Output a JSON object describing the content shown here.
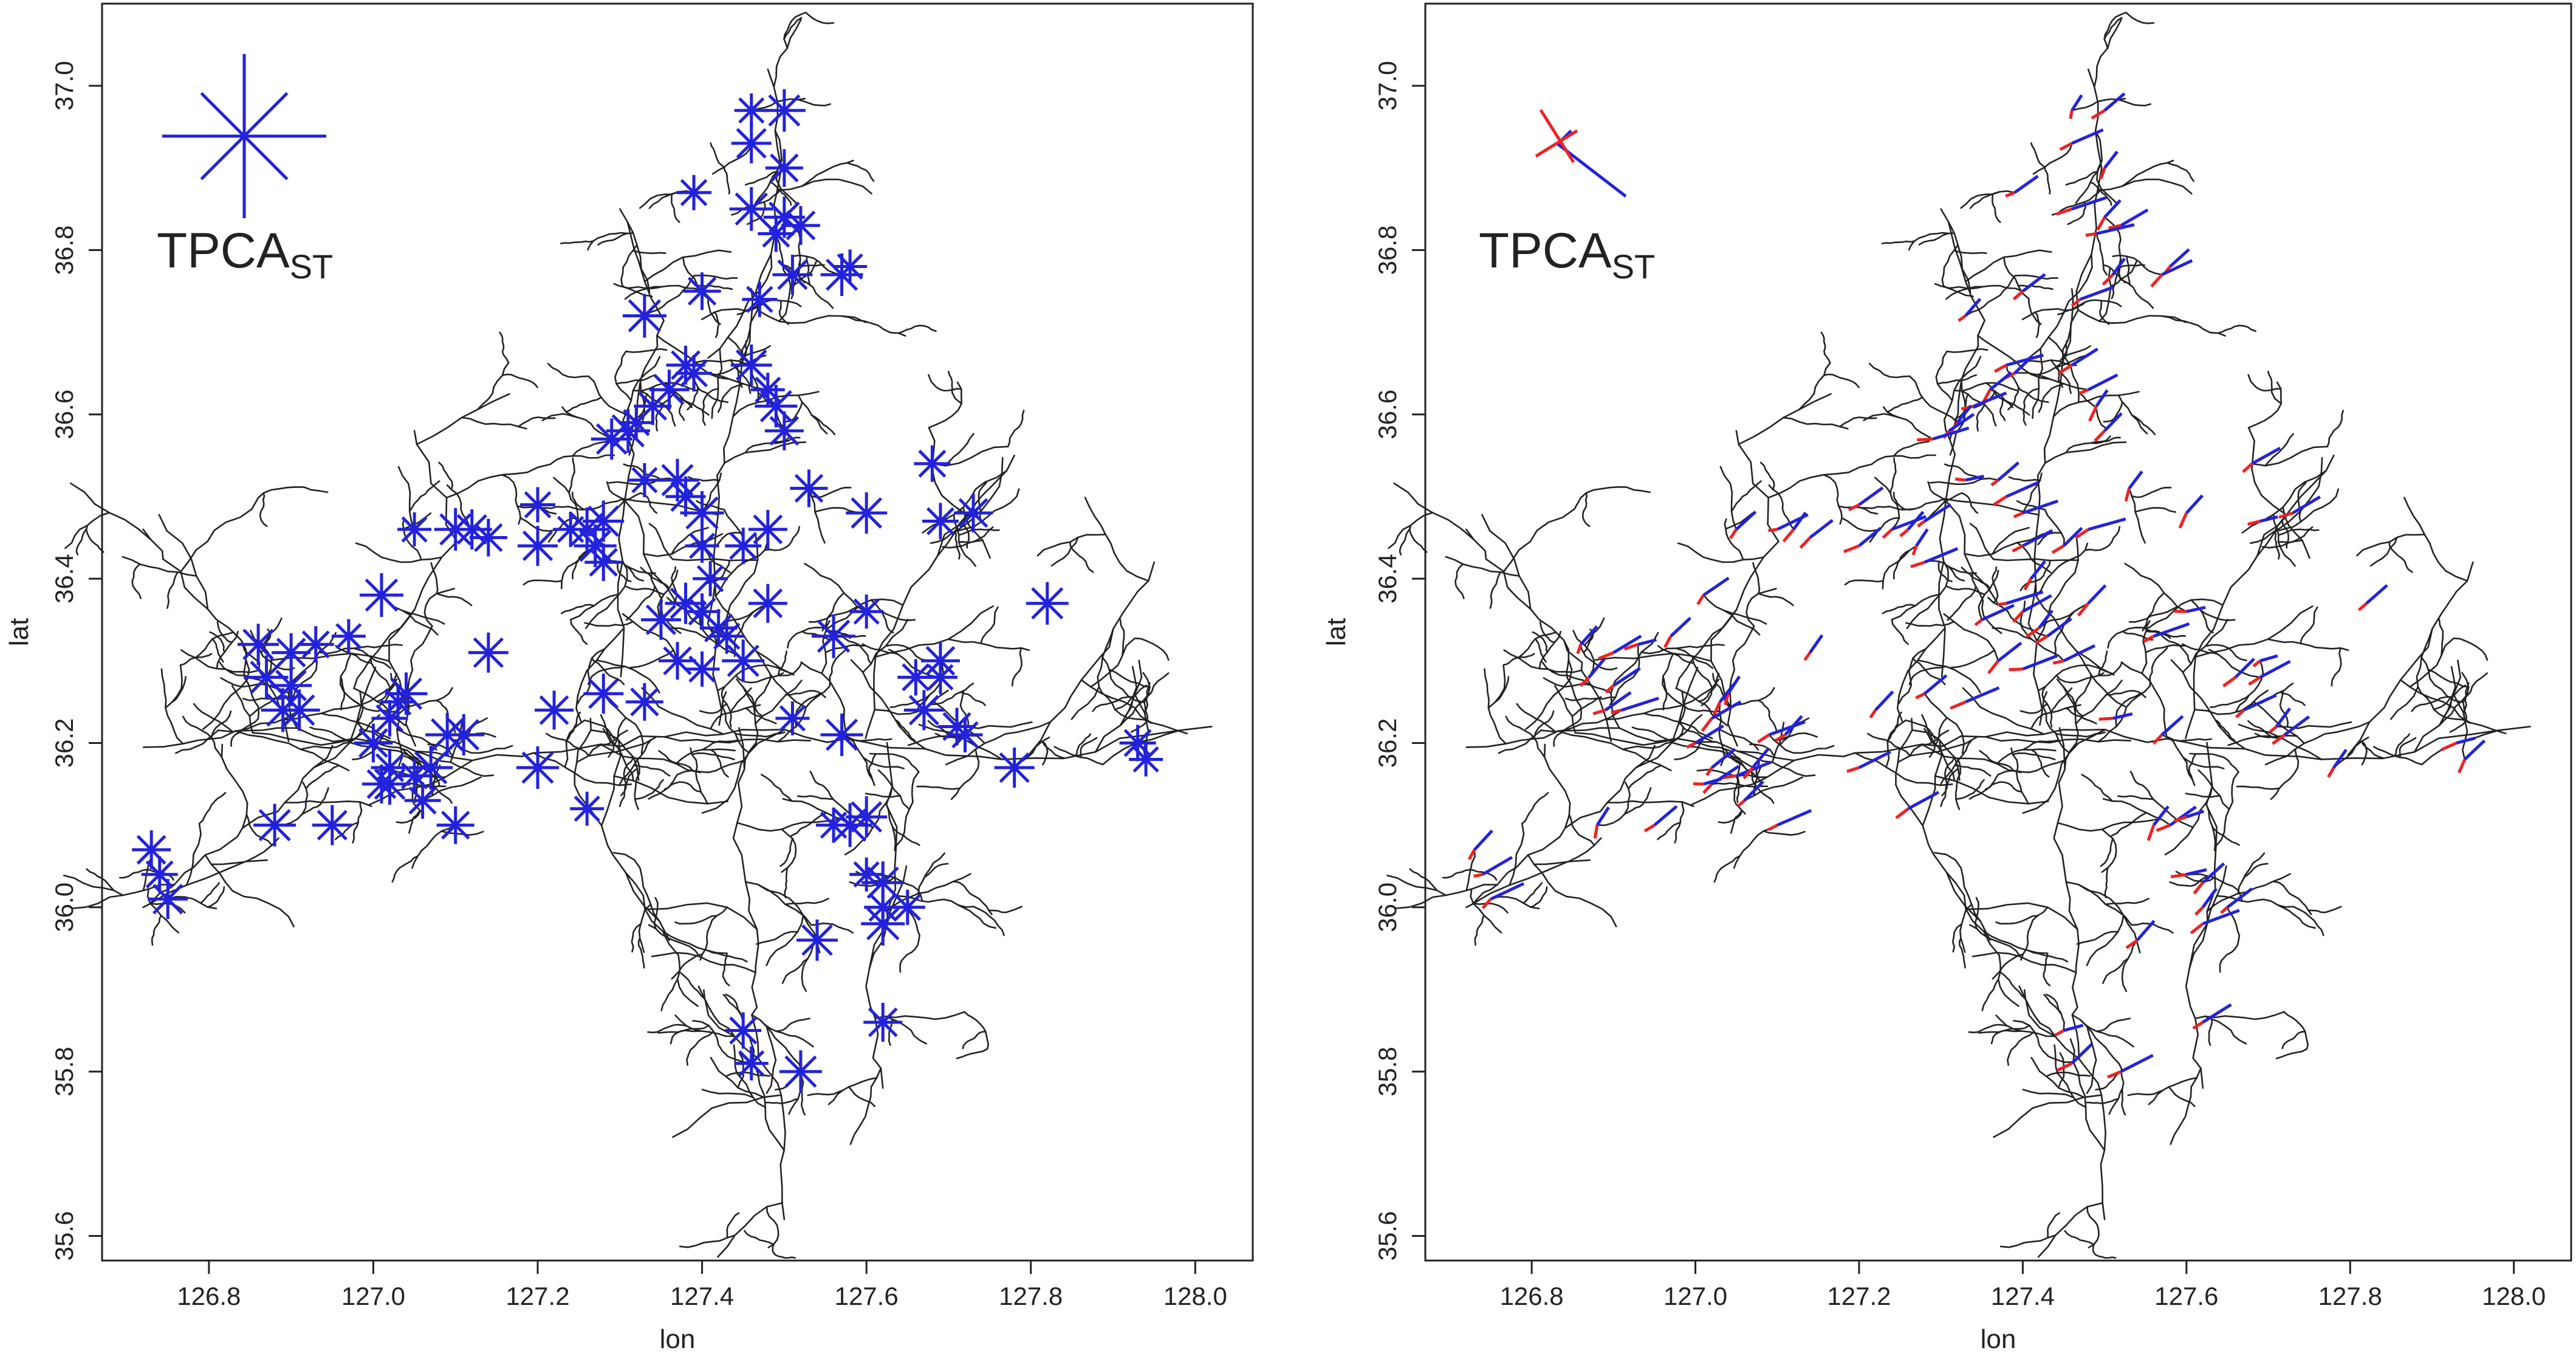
{
  "chart_data": [
    {
      "type": "scatter",
      "panel": "left",
      "xlabel": "lon",
      "ylabel": "lat",
      "xlim": [
        126.67,
        128.07
      ],
      "ylim": [
        35.57,
        37.1
      ],
      "xticks": [
        "126.8",
        "127.0",
        "127.2",
        "127.4",
        "127.6",
        "127.8",
        "128.0"
      ],
      "yticks": [
        "35.6",
        "35.8",
        "36.0",
        "36.2",
        "36.4",
        "36.6",
        "36.8",
        "37.0"
      ],
      "legend": {
        "label": "TPCA",
        "subscript": "ST",
        "placement": "top-left",
        "glyph": "star"
      },
      "colors": {
        "glyph": "#2222dd",
        "river": "#222222"
      },
      "sites": [
        [
          127.46,
          36.97
        ],
        [
          127.5,
          36.97
        ],
        [
          127.46,
          36.93
        ],
        [
          127.5,
          36.9
        ],
        [
          127.39,
          36.87
        ],
        [
          127.46,
          36.85
        ],
        [
          127.5,
          36.84
        ],
        [
          127.52,
          36.83
        ],
        [
          127.49,
          36.82
        ],
        [
          127.58,
          36.78
        ],
        [
          127.57,
          36.77
        ],
        [
          127.51,
          36.77
        ],
        [
          127.4,
          36.75
        ],
        [
          127.47,
          36.74
        ],
        [
          127.33,
          36.72
        ],
        [
          127.46,
          36.66
        ],
        [
          127.38,
          36.66
        ],
        [
          127.39,
          36.65
        ],
        [
          127.48,
          36.63
        ],
        [
          127.49,
          36.61
        ],
        [
          127.36,
          36.63
        ],
        [
          127.34,
          36.61
        ],
        [
          127.32,
          36.59
        ],
        [
          127.31,
          36.58
        ],
        [
          127.29,
          36.57
        ],
        [
          127.5,
          36.58
        ],
        [
          127.68,
          36.54
        ],
        [
          127.33,
          36.52
        ],
        [
          127.37,
          36.52
        ],
        [
          127.38,
          36.5
        ],
        [
          127.53,
          36.51
        ],
        [
          127.2,
          36.49
        ],
        [
          127.4,
          36.48
        ],
        [
          127.6,
          36.48
        ],
        [
          127.73,
          36.48
        ],
        [
          127.69,
          36.47
        ],
        [
          127.05,
          36.46
        ],
        [
          127.1,
          36.46
        ],
        [
          127.12,
          36.46
        ],
        [
          127.14,
          36.45
        ],
        [
          127.24,
          36.46
        ],
        [
          127.26,
          36.46
        ],
        [
          127.28,
          36.47
        ],
        [
          127.48,
          36.46
        ],
        [
          127.45,
          36.44
        ],
        [
          127.4,
          36.44
        ],
        [
          127.27,
          36.44
        ],
        [
          127.2,
          36.44
        ],
        [
          127.28,
          36.42
        ],
        [
          127.41,
          36.4
        ],
        [
          127.01,
          36.38
        ],
        [
          127.38,
          36.37
        ],
        [
          127.48,
          36.37
        ],
        [
          127.4,
          36.36
        ],
        [
          127.6,
          36.36
        ],
        [
          127.82,
          36.37
        ],
        [
          127.35,
          36.35
        ],
        [
          127.42,
          36.34
        ],
        [
          127.43,
          36.33
        ],
        [
          127.56,
          36.33
        ],
        [
          126.86,
          36.32
        ],
        [
          126.9,
          36.31
        ],
        [
          126.93,
          36.32
        ],
        [
          126.97,
          36.33
        ],
        [
          127.45,
          36.3
        ],
        [
          127.14,
          36.31
        ],
        [
          127.37,
          36.3
        ],
        [
          127.4,
          36.29
        ],
        [
          126.87,
          36.28
        ],
        [
          126.9,
          36.27
        ],
        [
          127.69,
          36.3
        ],
        [
          127.66,
          36.28
        ],
        [
          127.69,
          36.28
        ],
        [
          127.04,
          36.26
        ],
        [
          127.28,
          36.26
        ],
        [
          127.33,
          36.25
        ],
        [
          127.03,
          36.25
        ],
        [
          126.89,
          36.24
        ],
        [
          126.91,
          36.24
        ],
        [
          127.22,
          36.24
        ],
        [
          127.02,
          36.23
        ],
        [
          127.51,
          36.23
        ],
        [
          127.57,
          36.21
        ],
        [
          127.67,
          36.24
        ],
        [
          127.71,
          36.22
        ],
        [
          127.72,
          36.21
        ],
        [
          127.09,
          36.21
        ],
        [
          127.11,
          36.21
        ],
        [
          127.0,
          36.2
        ],
        [
          127.93,
          36.2
        ],
        [
          127.94,
          36.18
        ],
        [
          127.2,
          36.17
        ],
        [
          127.78,
          36.17
        ],
        [
          127.02,
          36.17
        ],
        [
          127.05,
          36.16
        ],
        [
          127.07,
          36.17
        ],
        [
          127.02,
          36.15
        ],
        [
          127.01,
          36.15
        ],
        [
          127.06,
          36.13
        ],
        [
          127.26,
          36.12
        ],
        [
          126.88,
          36.1
        ],
        [
          126.95,
          36.1
        ],
        [
          127.1,
          36.1
        ],
        [
          127.56,
          36.1
        ],
        [
          127.58,
          36.1
        ],
        [
          127.6,
          36.11
        ],
        [
          126.73,
          36.07
        ],
        [
          126.74,
          36.04
        ],
        [
          127.6,
          36.04
        ],
        [
          127.62,
          36.03
        ],
        [
          126.75,
          36.01
        ],
        [
          127.62,
          36.0
        ],
        [
          127.65,
          36.0
        ],
        [
          127.62,
          35.98
        ],
        [
          127.54,
          35.96
        ],
        [
          127.62,
          35.86
        ],
        [
          127.45,
          35.85
        ],
        [
          127.46,
          35.81
        ],
        [
          127.52,
          35.8
        ]
      ]
    },
    {
      "type": "scatter",
      "panel": "right",
      "xlabel": "lon",
      "ylabel": "lat",
      "xlim": [
        126.67,
        128.07
      ],
      "ylim": [
        35.57,
        37.1
      ],
      "xticks": [
        "126.8",
        "127.0",
        "127.2",
        "127.4",
        "127.6",
        "127.8",
        "128.0"
      ],
      "yticks": [
        "35.6",
        "35.8",
        "36.0",
        "36.2",
        "36.4",
        "36.6",
        "36.8",
        "37.0"
      ],
      "legend": {
        "label": "TPCA",
        "subscript": "ST",
        "placement": "top-left",
        "glyph": "segments"
      },
      "colors": {
        "primary": "#2222dd",
        "secondary": "#ee2222",
        "river": "#222222"
      }
    }
  ]
}
